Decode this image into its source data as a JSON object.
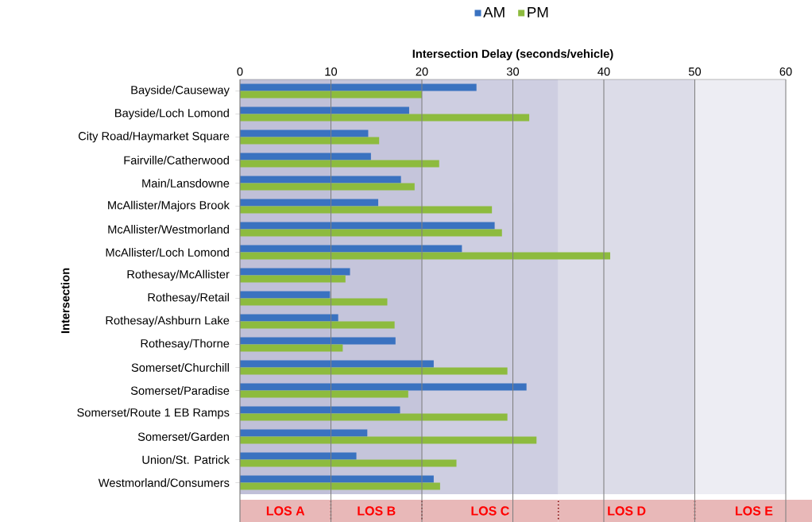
{
  "chart_data": {
    "type": "bar",
    "orientation": "horizontal",
    "xlabel": "Intersection Delay (seconds/vehicle)",
    "ylabel": "Intersection",
    "categories": [
      "Bayside/Causeway",
      "Bayside/Loch Lomond",
      "City Road/Haymarket Square",
      "Fairville/Catherwood",
      "Main/Lansdowne",
      "McAllister/Majors Brook",
      "McAllister/Westmorland",
      "McAllister/Loch Lomond",
      "Rothesay/McAllister",
      "Rothesay/Retail",
      "Rothesay/Ashburn Lake",
      "Rothesay/Thorne",
      "Somerset/Churchill",
      "Somerset/Paradise",
      "Somerset/Route 1 EB Ramps",
      "Somerset/Garden",
      "Union/St. Patrick",
      "Westmorland/Consumers"
    ],
    "series": [
      {
        "name": "AM",
        "color": "#3a72c0",
        "values": [
          26.0,
          18.6,
          14.1,
          14.4,
          17.7,
          15.2,
          28.0,
          24.4,
          12.1,
          9.9,
          10.8,
          17.1,
          21.3,
          31.5,
          17.6,
          14.0,
          12.8,
          21.3
        ]
      },
      {
        "name": "PM",
        "color": "#8dbb3e",
        "values": [
          20.0,
          31.8,
          15.3,
          21.9,
          19.2,
          27.7,
          28.8,
          40.7,
          11.6,
          16.2,
          17.0,
          11.3,
          29.4,
          18.5,
          29.4,
          32.6,
          23.8,
          22.0
        ]
      }
    ],
    "xlim": [
      0,
      60
    ],
    "xticks": [
      0,
      10,
      20,
      30,
      40,
      50,
      60
    ],
    "grid": "x",
    "legend": "top",
    "bands": [
      {
        "axis": "x",
        "from": 0,
        "to": 10,
        "label": "LOS A",
        "color": "#c0c0d8"
      },
      {
        "axis": "x",
        "from": 10,
        "to": 20,
        "label": "LOS B",
        "color": "#c5c5db"
      },
      {
        "axis": "x",
        "from": 20,
        "to": 35,
        "label": "LOS C",
        "color": "#cecee1"
      },
      {
        "axis": "x",
        "from": 35,
        "to": 50,
        "label": "LOS D",
        "color": "#dcdce8"
      },
      {
        "axis": "x",
        "from": 50,
        "to": 63,
        "label": "LOS E",
        "color": "#ededf3"
      }
    ]
  }
}
